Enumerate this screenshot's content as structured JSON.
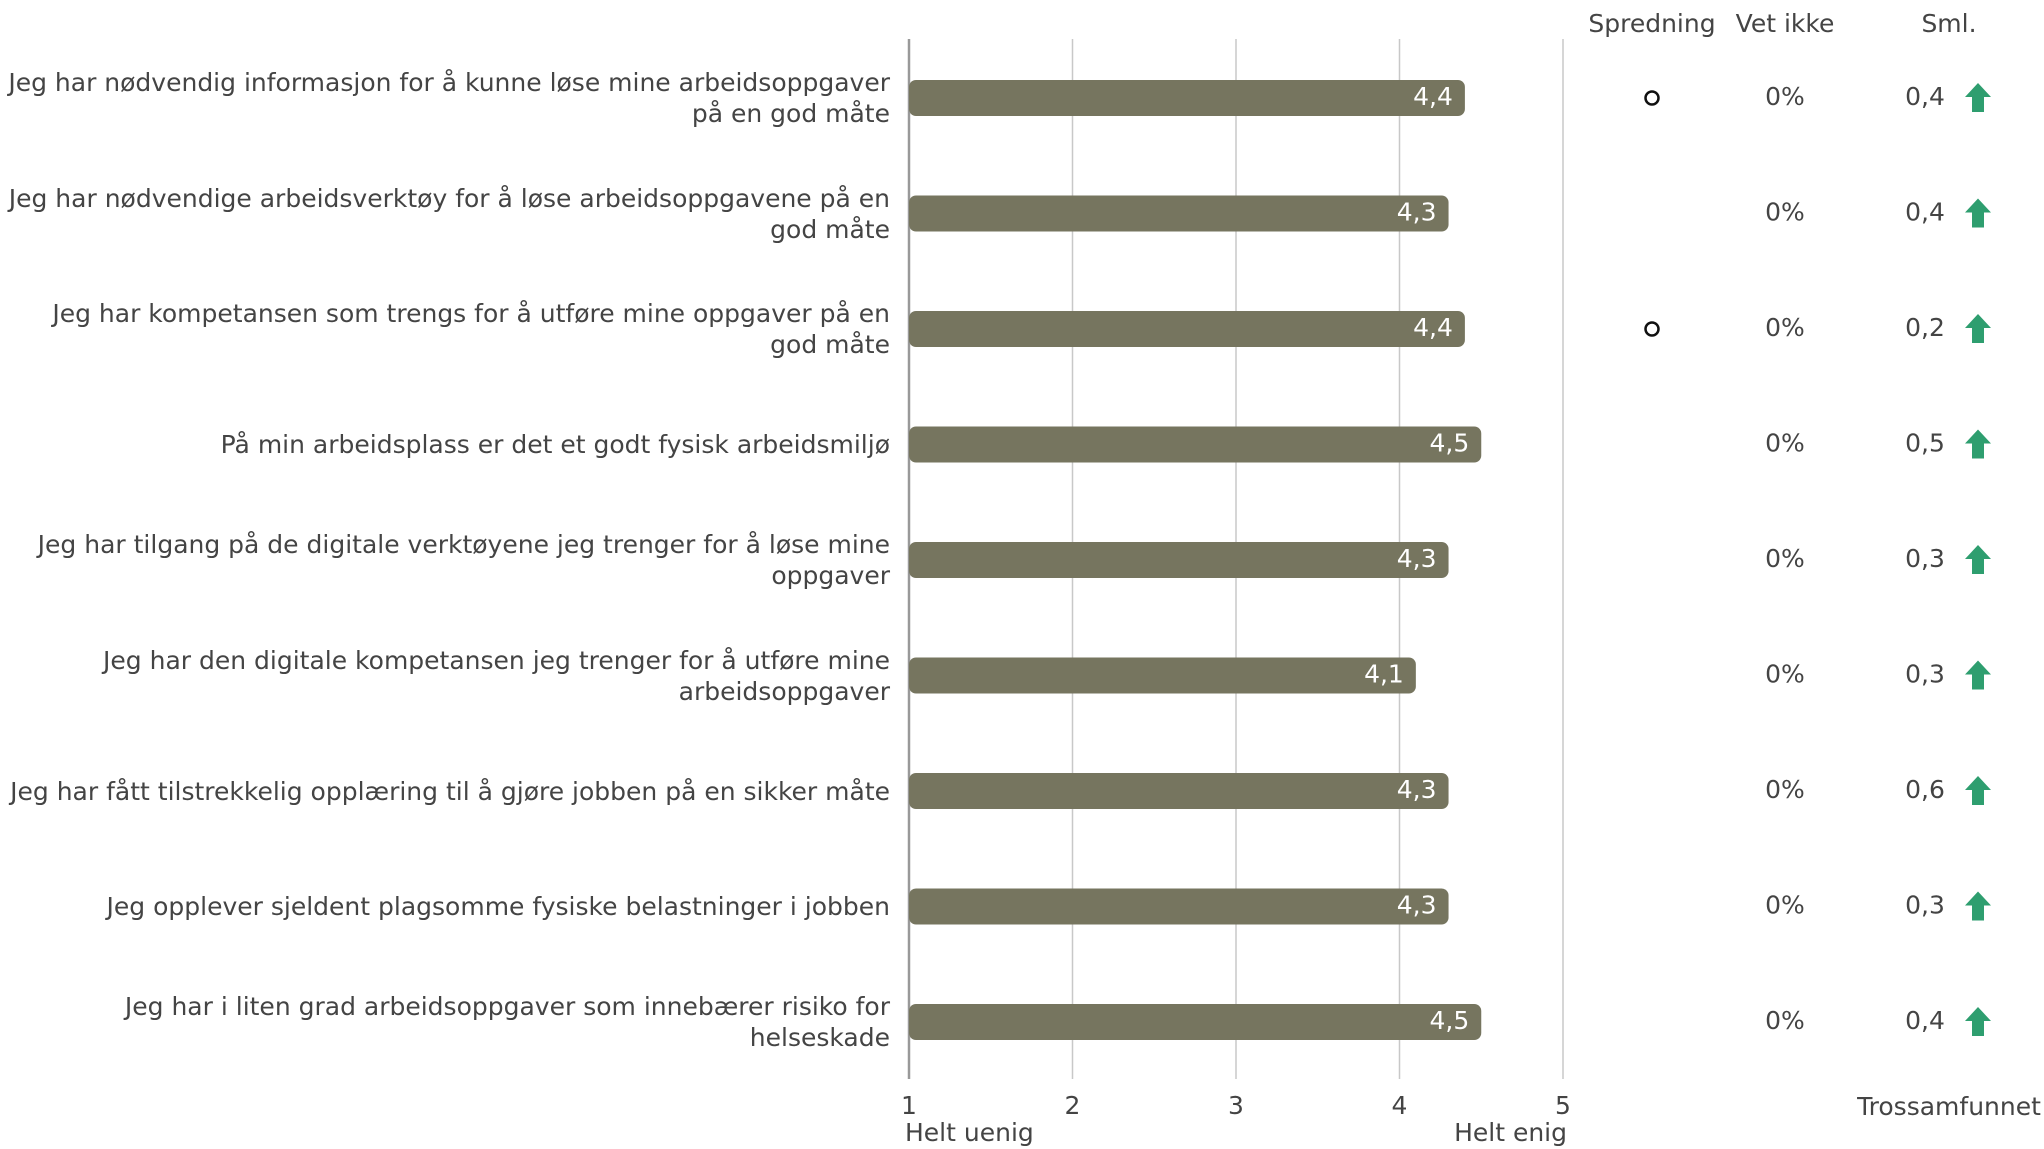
{
  "chart_data": {
    "type": "bar",
    "categories": [
      "Jeg har nødvendig informasjon for å kunne løse mine arbeidsoppgaver på en god måte",
      "Jeg har nødvendige arbeidsverktøy for å løse arbeidsoppgavene på en god måte",
      "Jeg har kompetansen som trengs for å utføre mine oppgaver på en god måte",
      "På min arbeidsplass er det et godt fysisk arbeidsmiljø",
      "Jeg har tilgang på de digitale verktøyene jeg trenger for å løse mine oppgaver",
      "Jeg har den digitale kompetansen jeg trenger for å utføre mine arbeidsoppgaver",
      "Jeg har fått tilstrekkelig opplæring til å gjøre jobben på en sikker måte",
      "Jeg opplever sjeldent plagsomme fysiske belastninger i jobben",
      "Jeg har i liten grad arbeidsoppgaver som innebærer risiko for helseskade"
    ],
    "values": [
      4.4,
      4.3,
      4.4,
      4.5,
      4.3,
      4.1,
      4.3,
      4.3,
      4.5
    ],
    "value_labels": [
      "4,4",
      "4,3",
      "4,4",
      "4,5",
      "4,3",
      "4,1",
      "4,3",
      "4,3",
      "4,5"
    ],
    "color": "#76755f",
    "xlim": [
      1,
      5
    ],
    "xticks": [
      1,
      2,
      3,
      4,
      5
    ],
    "x_end_labels": [
      "Helt uenig",
      "Helt enig"
    ],
    "grid": true,
    "spread": {
      "header": "Spredning",
      "marks": [
        true,
        false,
        true,
        false,
        false,
        false,
        false,
        false,
        false
      ]
    },
    "dont_know": {
      "header": "Vet ikke",
      "values": [
        0,
        0,
        0,
        0,
        0,
        0,
        0,
        0,
        0
      ],
      "value_labels": [
        "0%",
        "0%",
        "0%",
        "0%",
        "0%",
        "0%",
        "0%",
        "0%",
        "0%"
      ]
    },
    "comparison": {
      "header": "Sml.",
      "values": [
        0.4,
        0.4,
        0.2,
        0.5,
        0.3,
        0.3,
        0.6,
        0.3,
        0.4
      ],
      "value_labels": [
        "0,4",
        "0,4",
        "0,2",
        "0,5",
        "0,3",
        "0,3",
        "0,6",
        "0,3",
        "0,4"
      ],
      "arrow_color": "#2e9e6f",
      "footer": "Trossamfunnet"
    }
  }
}
